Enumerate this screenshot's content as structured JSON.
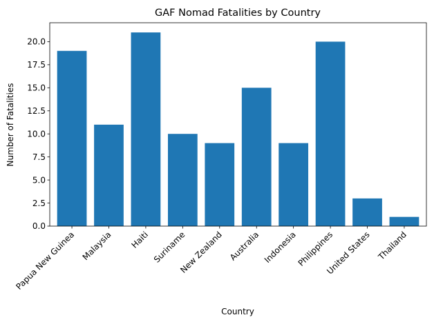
{
  "chart_data": {
    "type": "bar",
    "title": "GAF Nomad Fatalities by Country",
    "xlabel": "Country",
    "ylabel": "Number of Fatalities",
    "categories": [
      "Papua New Guinea",
      "Malaysia",
      "Haiti",
      "Suriname",
      "New Zealand",
      "Australia",
      "Indonesia",
      "Philippines",
      "United States",
      "Thailand"
    ],
    "values": [
      19,
      11,
      21,
      10,
      9,
      15,
      9,
      20,
      3,
      1
    ],
    "ylim": [
      0,
      22.05
    ],
    "yticks": [
      0,
      2.5,
      5,
      7.5,
      10,
      12.5,
      15,
      17.5,
      20
    ],
    "ytick_labels": [
      "0.0",
      "2.5",
      "5.0",
      "7.5",
      "10.0",
      "12.5",
      "15.0",
      "17.5",
      "20.0"
    ],
    "bar_color": "#1f77b4",
    "grid": false
  }
}
